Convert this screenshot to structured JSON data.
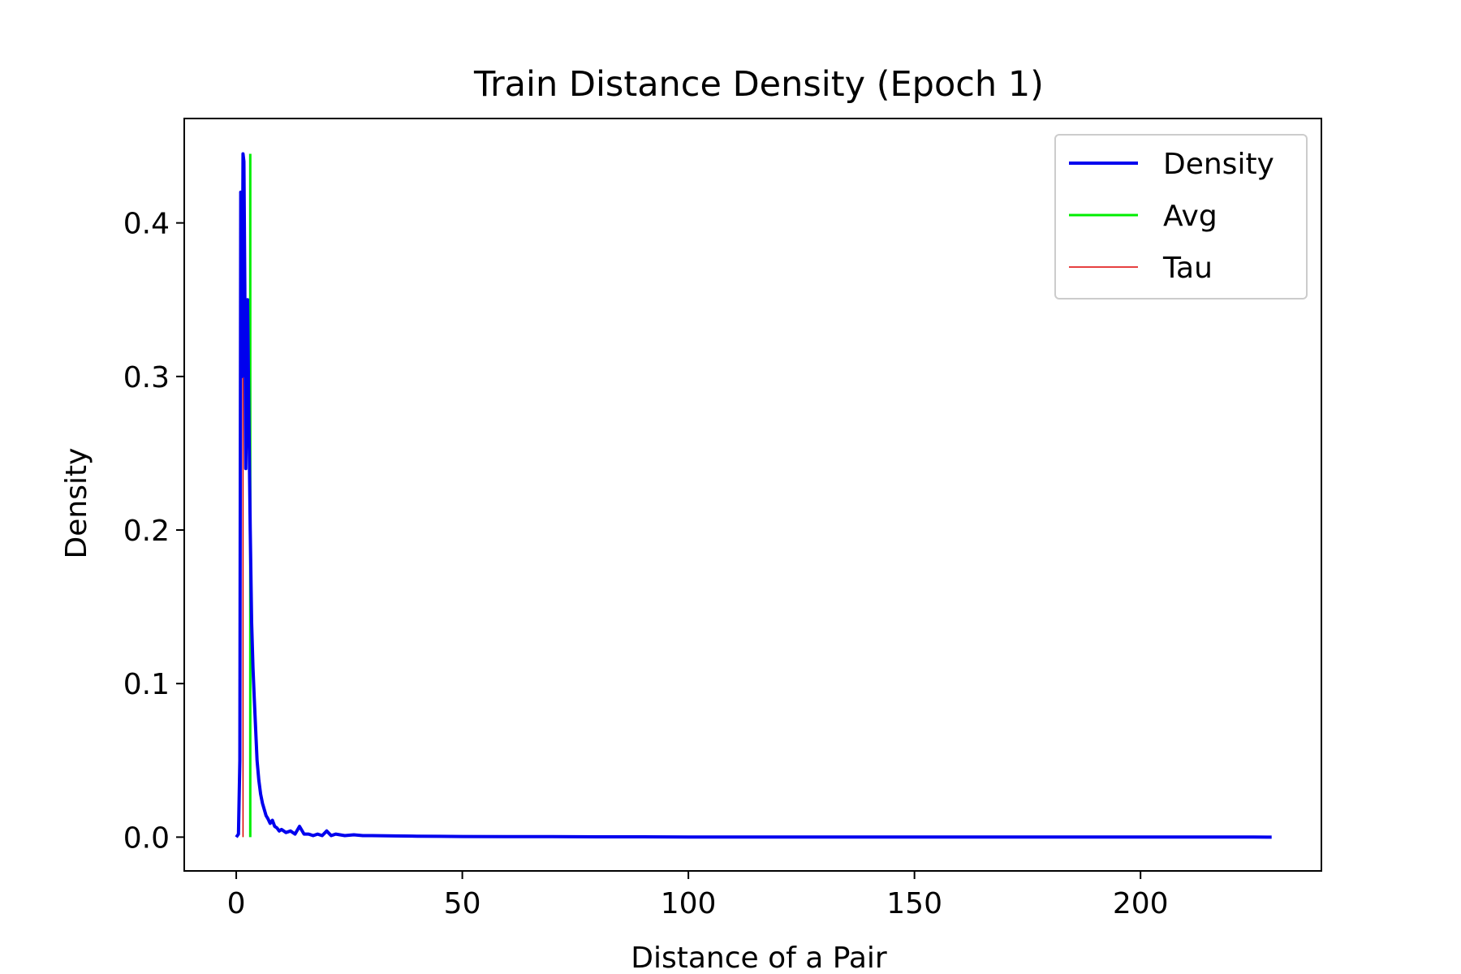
{
  "chart_data": {
    "type": "line",
    "title": "Train Distance Density (Epoch 1)",
    "xlabel": "Distance of a Pair",
    "ylabel": "Density",
    "xlim": [
      -11.5,
      240
    ],
    "ylim": [
      -0.022,
      0.468
    ],
    "xticks": [
      0,
      50,
      100,
      150,
      200
    ],
    "xtick_labels": [
      "0",
      "50",
      "100",
      "150",
      "200"
    ],
    "yticks": [
      0.0,
      0.1,
      0.2,
      0.3,
      0.4
    ],
    "ytick_labels": [
      "0.0",
      "0.1",
      "0.2",
      "0.3",
      "0.4"
    ],
    "grid": false,
    "legend_position": "top-right",
    "colors": {
      "density": "#0000ee",
      "avg": "#00ee00",
      "tau": "#dd0000"
    },
    "series": [
      {
        "name": "Density",
        "x": [
          0,
          0.5,
          0.8,
          1.0,
          1.3,
          1.5,
          1.7,
          1.9,
          2.1,
          2.3,
          2.5,
          2.8,
          3.1,
          3.4,
          3.7,
          4.0,
          4.3,
          4.6,
          5.0,
          5.4,
          5.8,
          6.2,
          6.6,
          7.0,
          7.5,
          8.0,
          8.5,
          9.0,
          9.5,
          10,
          11,
          12,
          13,
          14,
          15,
          16,
          17,
          18,
          19,
          20,
          21,
          22,
          24,
          26,
          28,
          30,
          35,
          40,
          45,
          50,
          60,
          70,
          80,
          90,
          100,
          120,
          140,
          160,
          180,
          200,
          210,
          220,
          225,
          228,
          229
        ],
        "y": [
          0.0,
          0.002,
          0.05,
          0.42,
          0.3,
          0.445,
          0.44,
          0.36,
          0.24,
          0.3,
          0.35,
          0.27,
          0.2,
          0.14,
          0.11,
          0.09,
          0.07,
          0.05,
          0.037,
          0.028,
          0.022,
          0.018,
          0.014,
          0.012,
          0.009,
          0.011,
          0.007,
          0.006,
          0.004,
          0.005,
          0.003,
          0.004,
          0.002,
          0.007,
          0.002,
          0.002,
          0.001,
          0.002,
          0.001,
          0.004,
          0.001,
          0.002,
          0.001,
          0.0015,
          0.001,
          0.001,
          0.0008,
          0.0006,
          0.0005,
          0.0004,
          0.0003,
          0.0003,
          0.0002,
          0.0002,
          0.0001,
          0.0001,
          0.0001,
          0.0001,
          0.0001,
          0.0001,
          0.0001,
          0.0001,
          0.0001,
          0.0,
          0.0
        ]
      },
      {
        "name": "Avg",
        "x": 3.1,
        "y_range": [
          0.0,
          0.445
        ]
      },
      {
        "name": "Tau",
        "x": 1.5,
        "y_range": [
          0.0,
          0.445
        ]
      }
    ]
  }
}
